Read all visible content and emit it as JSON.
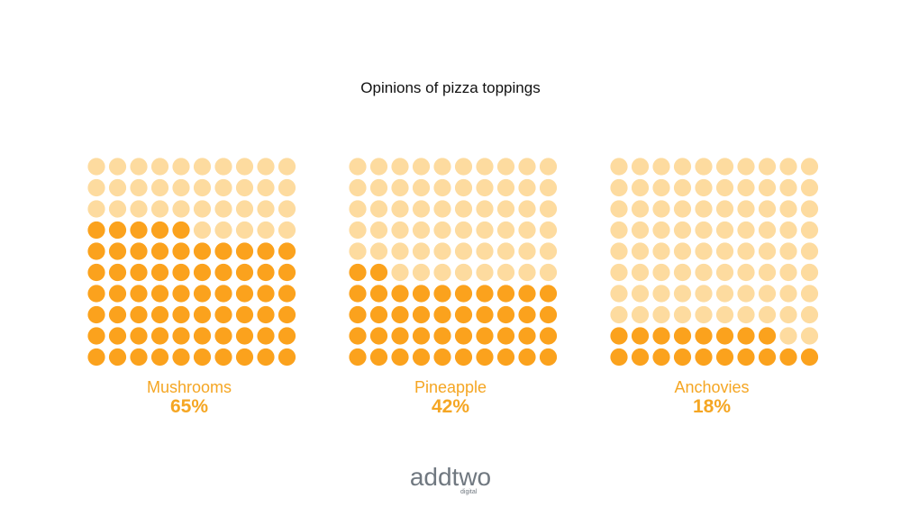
{
  "colors": {
    "filled": "#fba21d",
    "empty": "#fddb9f",
    "label": "#f5a623",
    "title": "#111111",
    "logo": "#707880"
  },
  "chart_data": [
    {
      "type": "waffle",
      "title": "Opinions of pizza toppings",
      "grid": [
        10,
        10
      ],
      "fill_order": "bottom-up, left-to-right",
      "series": [
        {
          "name": "Mushrooms",
          "value": 65,
          "label": "65%"
        },
        {
          "name": "Pineapple",
          "value": 42,
          "label": "42%"
        },
        {
          "name": "Anchovies",
          "value": 18,
          "label": "18%"
        }
      ]
    }
  ],
  "logo": {
    "main": "addtwo",
    "sub": "digital"
  }
}
